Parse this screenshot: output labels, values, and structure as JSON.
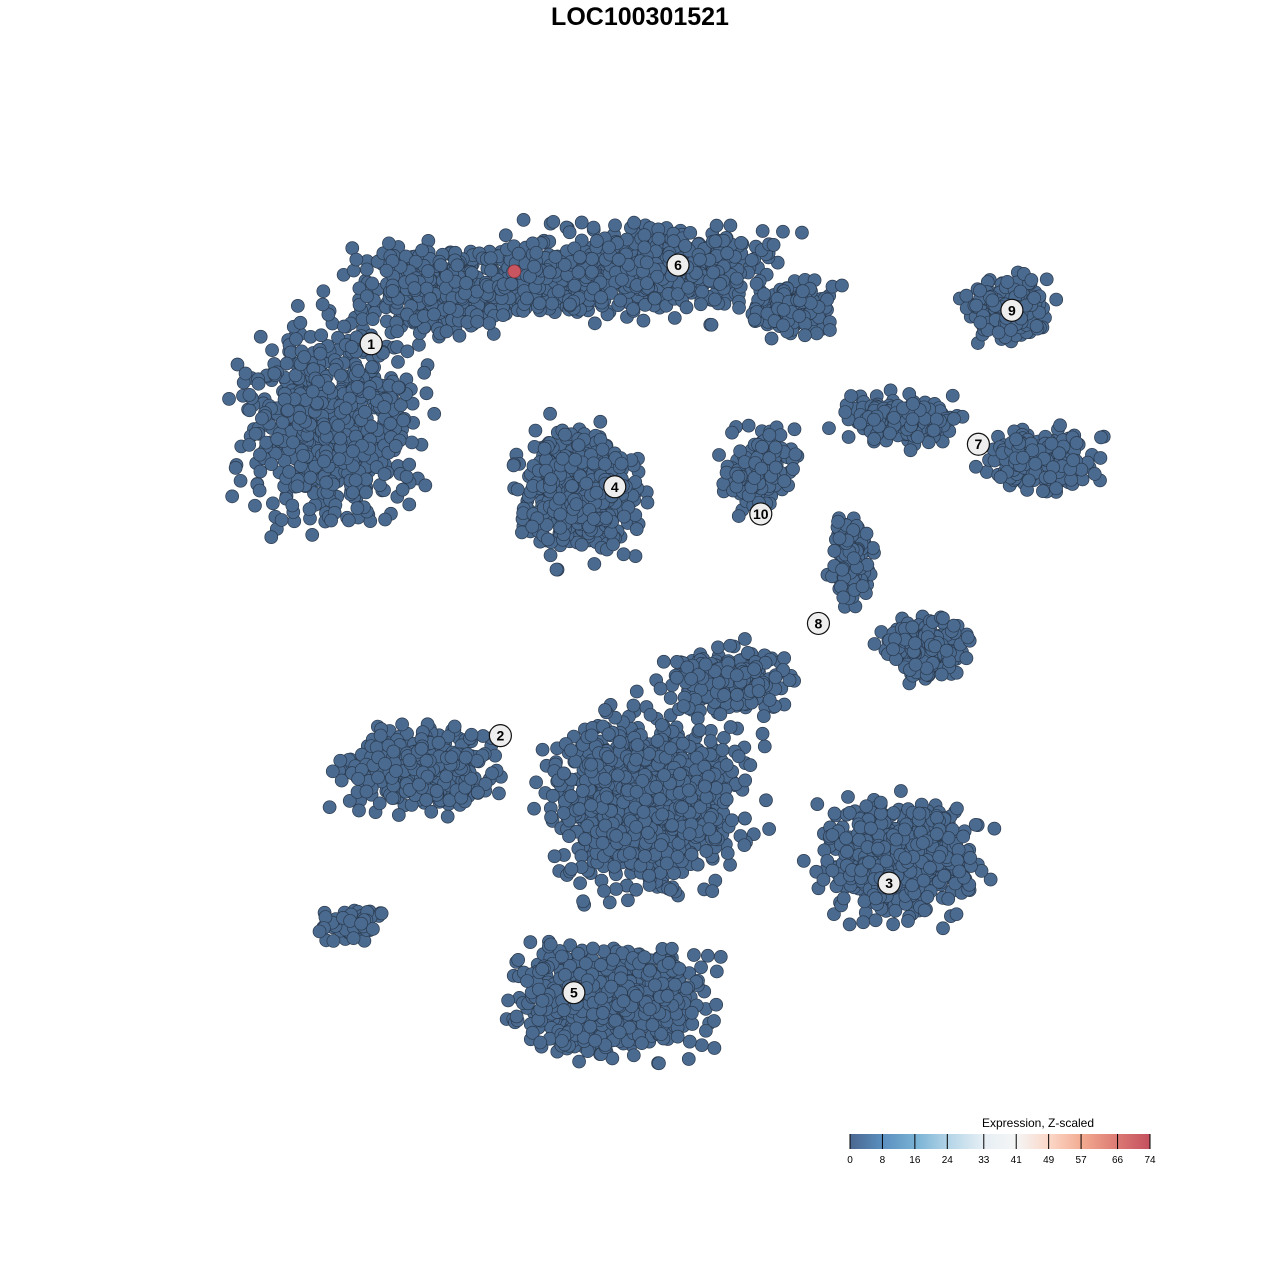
{
  "chart_data": {
    "type": "scatter",
    "title": "LOC100301521",
    "xlabel": "",
    "ylabel": "",
    "grid": false,
    "axes_visible": false,
    "point_color_default": "#4a6a90",
    "point_outline_color": "#2b3a4d",
    "highlight_color": "#c8555f",
    "clusters": [
      {
        "label": "1",
        "x": -31.6,
        "y": 32.4
      },
      {
        "label": "2",
        "x": -17.7,
        "y": -10.9
      },
      {
        "label": "3",
        "x": 24.1,
        "y": -27.2
      },
      {
        "label": "4",
        "x": -5.4,
        "y": 16.6
      },
      {
        "label": "5",
        "x": -9.8,
        "y": -39.3
      },
      {
        "label": "6",
        "x": 1.4,
        "y": 41.1
      },
      {
        "label": "7",
        "x": 33.7,
        "y": 21.3
      },
      {
        "label": "8",
        "x": 16.5,
        "y": 1.5
      },
      {
        "label": "9",
        "x": 37.3,
        "y": 36.1
      },
      {
        "label": "10",
        "x": 10.3,
        "y": 13.6
      }
    ],
    "expression_note": "all cells near minimum except one",
    "highlighted_points": [
      {
        "x": -16.2,
        "y": 40.4,
        "value": 74
      }
    ],
    "legend": {
      "title": "Expression, Z-scaled",
      "placement": "bottom-right",
      "range": [
        0,
        74
      ],
      "ticks": [
        "0",
        "8",
        "16",
        "24",
        "33",
        "41",
        "49",
        "57",
        "66",
        "74"
      ],
      "colors": [
        "#4a6790",
        "#5b90c0",
        "#7ab3d5",
        "#b6d6e8",
        "#e6eff5",
        "#f5f5f5",
        "#fbd6c6",
        "#f2a98f",
        "#dc7a74",
        "#c4505e"
      ]
    }
  }
}
